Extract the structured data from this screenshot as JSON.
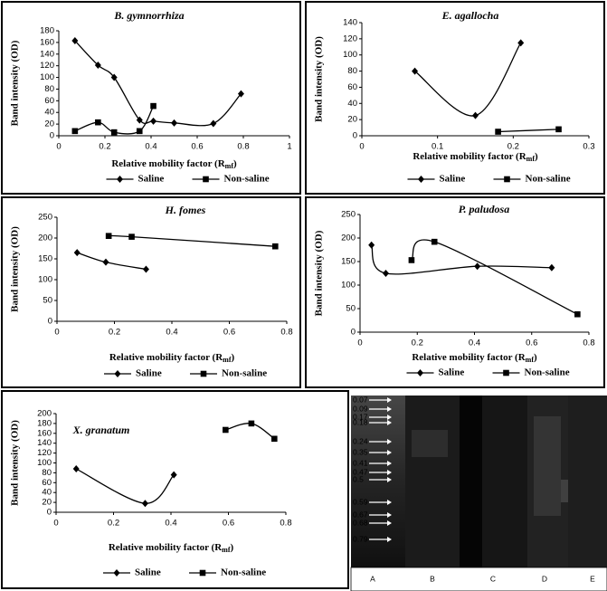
{
  "chart_data": [
    {
      "type": "line",
      "title": "B. gymnorrhiza",
      "ylabel": "Band intensity (OD)",
      "xlabel": [
        "Relative mobility factor (R",
        "mf",
        ")"
      ],
      "xlim": [
        0,
        1
      ],
      "xticks": [
        0,
        0.2,
        0.4,
        0.6,
        0.8,
        1
      ],
      "ylim": [
        0,
        180
      ],
      "yticks": [
        0,
        20,
        40,
        60,
        80,
        100,
        120,
        140,
        160,
        180
      ],
      "series": [
        {
          "name": "Saline",
          "color": "#000000",
          "marker": "diamond",
          "x": [
            0.07,
            0.17,
            0.24,
            0.35,
            0.41,
            0.5,
            0.67,
            0.79
          ],
          "values": [
            163,
            121,
            100,
            27,
            25,
            22,
            21,
            72
          ]
        },
        {
          "name": "Non-saline",
          "color": "#000000",
          "marker": "square",
          "x": [
            0.07,
            0.17,
            0.24,
            0.35,
            0.41
          ],
          "values": [
            8,
            23,
            6,
            8,
            51
          ]
        }
      ]
    },
    {
      "type": "line",
      "title": "E. agallocha",
      "ylabel": "Band intensity (OD)",
      "xlabel": [
        "Relative mobility factor (R",
        "mf",
        ")"
      ],
      "xlim": [
        0,
        0.3
      ],
      "xticks": [
        0,
        0.1,
        0.2,
        0.3
      ],
      "ylim": [
        0,
        140
      ],
      "yticks": [
        0,
        20,
        40,
        60,
        80,
        100,
        120,
        140
      ],
      "series": [
        {
          "name": "Saline",
          "color": "#000000",
          "marker": "diamond",
          "x": [
            0.07,
            0.15,
            0.21
          ],
          "values": [
            80,
            25,
            115
          ]
        },
        {
          "name": "Non-saline",
          "color": "#000000",
          "marker": "square",
          "x": [
            0.18,
            0.26
          ],
          "values": [
            5,
            8
          ]
        }
      ]
    },
    {
      "type": "line",
      "title": "H. fomes",
      "ylabel": "Band intensity (OD)",
      "xlabel": [
        "Relative mobility factor (R",
        "mf",
        ")"
      ],
      "xlim": [
        0,
        0.8
      ],
      "xticks": [
        0,
        0.2,
        0.4,
        0.6,
        0.8
      ],
      "ylim": [
        0,
        250
      ],
      "yticks": [
        0,
        50,
        100,
        150,
        200,
        250
      ],
      "series": [
        {
          "name": "Saline",
          "color": "#000000",
          "marker": "diamond",
          "x": [
            0.07,
            0.17,
            0.31
          ],
          "values": [
            165,
            142,
            125
          ]
        },
        {
          "name": "Non-saline",
          "color": "#000000",
          "marker": "square",
          "x": [
            0.18,
            0.26,
            0.76
          ],
          "values": [
            205,
            203,
            180
          ]
        }
      ]
    },
    {
      "type": "line",
      "title": "P. paludosa",
      "ylabel": "Band intensity (OD)",
      "xlabel": [
        "Relative mobility factor (R",
        "mf",
        ")"
      ],
      "xlim": [
        0,
        0.8
      ],
      "xticks": [
        0,
        0.2,
        0.4,
        0.6,
        0.8
      ],
      "ylim": [
        0,
        250
      ],
      "yticks": [
        0,
        50,
        100,
        150,
        200,
        250
      ],
      "series": [
        {
          "name": "Saline",
          "color": "#000000",
          "marker": "diamond",
          "x": [
            0.04,
            0.09,
            0.41,
            0.67
          ],
          "values": [
            185,
            125,
            140,
            137
          ]
        },
        {
          "name": "Non-saline",
          "color": "#000000",
          "marker": "square",
          "x": [
            0.18,
            0.26,
            0.76
          ],
          "values": [
            153,
            192,
            38
          ]
        }
      ]
    },
    {
      "type": "line",
      "title": "X. granatum",
      "ylabel": "Band intensity (OD)",
      "xlabel": [
        "Relative mobility factor (R",
        "mf",
        ")"
      ],
      "xlim": [
        0,
        0.8
      ],
      "xticks": [
        0,
        0.2,
        0.4,
        0.6,
        0.8
      ],
      "ylim": [
        0,
        200
      ],
      "yticks": [
        0,
        20,
        40,
        60,
        80,
        100,
        120,
        140,
        160,
        180,
        200
      ],
      "series": [
        {
          "name": "Saline",
          "color": "#000000",
          "marker": "diamond",
          "x": [
            0.07,
            0.31,
            0.41
          ],
          "values": [
            88,
            18,
            76
          ]
        },
        {
          "name": "Non-saline",
          "color": "#000000",
          "marker": "square",
          "x": [
            0.59,
            0.68,
            0.76
          ],
          "values": [
            167,
            180,
            149
          ]
        }
      ]
    }
  ],
  "gel": {
    "bands": [
      0.07,
      0.09,
      0.17,
      0.18,
      0.24,
      0.35,
      0.41,
      0.47,
      0.5,
      0.59,
      0.67,
      0.68,
      0.79
    ],
    "lanes": [
      "A",
      "B",
      "C",
      "D",
      "E"
    ]
  }
}
